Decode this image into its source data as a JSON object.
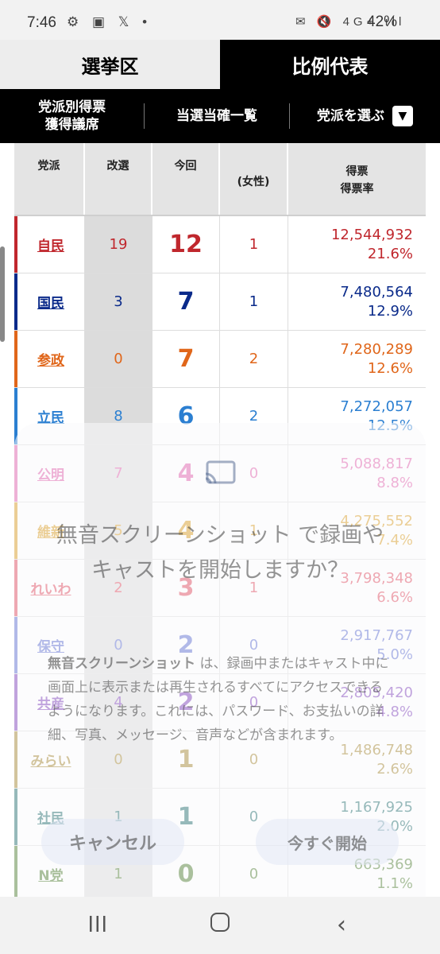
{
  "status_bar": {
    "time": "7:46",
    "left_icons": "⚙ ▣ 𝕏 •",
    "right_icons": "✉ 🔇 4G+ ıll",
    "battery": "42%"
  },
  "tabs": {
    "district": "選挙区",
    "proportional": "比例代表"
  },
  "subnav": {
    "votes_seats_line1": "党派別得票",
    "votes_seats_line2": "獲得議席",
    "elected_list": "当選当確一覧",
    "choose_party": "党派を選ぶ",
    "dropdown_icon": "chevron-down-icon"
  },
  "table": {
    "headers": {
      "party": "党派",
      "kaisen": "改選",
      "konkai": "今回",
      "josei": "(女性)",
      "votes1": "得票",
      "votes2": "得票率"
    },
    "rows": [
      {
        "party": "自民",
        "kaisen": "19",
        "konkai": "12",
        "josei": "1",
        "votes": "12,544,932",
        "rate": "21.6%",
        "color": "#c0272d"
      },
      {
        "party": "国民",
        "kaisen": "3",
        "konkai": "7",
        "josei": "1",
        "votes": "7,480,564",
        "rate": "12.9%",
        "color": "#0a2a8a"
      },
      {
        "party": "参政",
        "kaisen": "0",
        "konkai": "7",
        "josei": "2",
        "votes": "7,280,289",
        "rate": "12.6%",
        "color": "#e0661a"
      },
      {
        "party": "立民",
        "kaisen": "8",
        "konkai": "6",
        "josei": "2",
        "votes": "7,272,057",
        "rate": "12.5%",
        "color": "#2b7fd1"
      },
      {
        "party": "公明",
        "kaisen": "7",
        "konkai": "4",
        "josei": "0",
        "votes": "5,088,817",
        "rate": "8.8%",
        "color": "#e05aa8"
      },
      {
        "party": "維新",
        "kaisen": "5",
        "konkai": "4",
        "josei": "1",
        "votes": "4,275,552",
        "rate": "7.4%",
        "color": "#d99a1a"
      },
      {
        "party": "れいわ",
        "kaisen": "2",
        "konkai": "3",
        "josei": "1",
        "votes": "3,798,348",
        "rate": "6.6%",
        "color": "#e0455a"
      },
      {
        "party": "保守",
        "kaisen": "0",
        "konkai": "2",
        "josei": "0",
        "votes": "2,917,767",
        "rate": "5.0%",
        "color": "#5a6ad0"
      },
      {
        "party": "共産",
        "kaisen": "4",
        "konkai": "2",
        "josei": "0",
        "votes": "2,805,420",
        "rate": "4.8%",
        "color": "#7a3ab8"
      },
      {
        "party": "みらい",
        "kaisen": "0",
        "konkai": "1",
        "josei": "0",
        "votes": "1,486,748",
        "rate": "2.6%",
        "color": "#a3842a"
      },
      {
        "party": "社民",
        "kaisen": "1",
        "konkai": "1",
        "josei": "0",
        "votes": "1,167,925",
        "rate": "2.0%",
        "color": "#1e6b6b"
      },
      {
        "party": "N党",
        "kaisen": "1",
        "konkai": "0",
        "josei": "0",
        "votes": "663,369",
        "rate": "1.1%",
        "color": "#4a7a2a"
      }
    ]
  },
  "dialog": {
    "title": "無音スクリーンショット で録画やキャストを開始しますか？",
    "body_bold": "無音スクリーンショット",
    "body_rest": " は、録画中またはキャスト中に画面上に表示または再生されるすべてにアクセスできるようになります。これには、パスワード、お支払いの詳細、写真、メッセージ、音声などが含まれます。",
    "cancel": "キャンセル",
    "start": "今すぐ開始",
    "icon": "cast-icon"
  },
  "navbar": {
    "recent": "recent-apps-icon",
    "home": "home-icon",
    "back": "back-icon"
  }
}
